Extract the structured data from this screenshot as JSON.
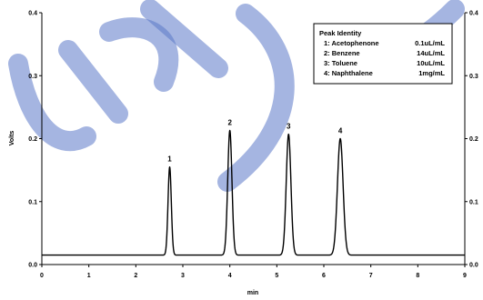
{
  "chart_data": {
    "type": "line",
    "xlabel": "min",
    "ylabel": "Volts",
    "xlim": [
      0,
      9
    ],
    "ylim": [
      0,
      0.4
    ],
    "x_ticks": [
      "0",
      "1",
      "2",
      "3",
      "4",
      "5",
      "6",
      "7",
      "8",
      "9"
    ],
    "y_ticks": [
      "0.0",
      "0.1",
      "0.2",
      "0.3",
      "0.4"
    ],
    "baseline": 0.015,
    "peaks": [
      {
        "label": "1",
        "x": 2.72,
        "y": 0.155,
        "width": 0.035
      },
      {
        "label": "2",
        "x": 4.0,
        "y": 0.213,
        "width": 0.045
      },
      {
        "label": "3",
        "x": 5.25,
        "y": 0.207,
        "width": 0.05
      },
      {
        "label": "4",
        "x": 6.35,
        "y": 0.2,
        "width": 0.06
      }
    ],
    "legend": {
      "title": "Peak Identity",
      "entries": [
        {
          "name": "1: Acetophenone",
          "amount": "0.1uL/mL"
        },
        {
          "name": "2: Benzene",
          "amount": "14uL/mL"
        },
        {
          "name": "3: Toluene",
          "amount": "10uL/mL"
        },
        {
          "name": "4: Naphthalene",
          "amount": "1mg/mL"
        }
      ]
    }
  }
}
